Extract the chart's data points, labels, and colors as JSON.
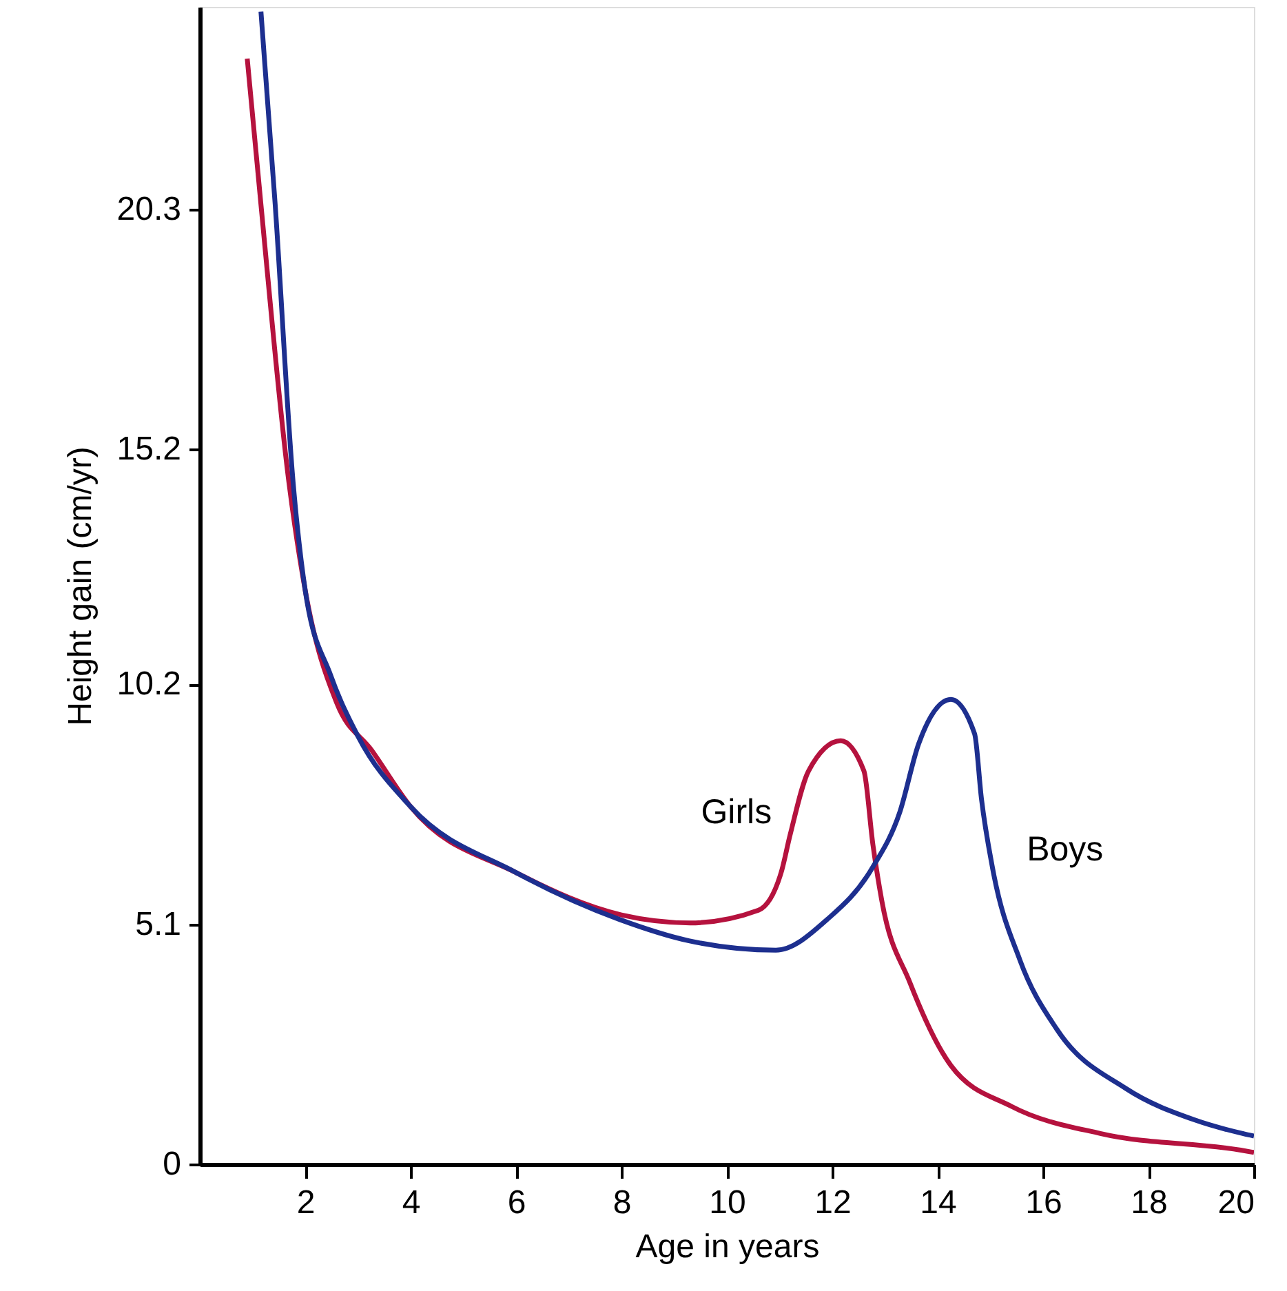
{
  "chart_data": {
    "type": "line",
    "xlabel": "Age in years",
    "ylabel": "Height gain (cm/yr)",
    "xlim": [
      0,
      20
    ],
    "xticks": [
      2,
      4,
      6,
      8,
      10,
      12,
      14,
      16,
      18,
      20
    ],
    "ylim": [
      0,
      24.6
    ],
    "yticks": [
      0,
      5.1,
      10.2,
      15.2,
      20.3
    ],
    "grid": false,
    "marker": "none",
    "line_style": "solid",
    "series": [
      {
        "name": "Girls",
        "color": "#b5123e",
        "x": [
          0.9,
          1.16,
          1.69,
          2,
          2.6,
          3.26,
          4,
          6,
          8,
          9.3,
          10.6,
          11.03,
          11.2,
          11.55,
          12.16,
          12.6,
          12.77,
          12.94,
          13.47,
          14.25,
          15.4,
          17.1,
          19.75,
          20
        ],
        "values": [
          23.5,
          20.4,
          14.5,
          12.2,
          9.8,
          8.8,
          7.6,
          6.2,
          5.3,
          5.13,
          5.4,
          6.2,
          7.0,
          8.36,
          9.0,
          8.36,
          6.8,
          5.6,
          3.87,
          2.1,
          1.23,
          0.65,
          0.3,
          0.25
        ]
      },
      {
        "name": "Boys",
        "color": "#1d2f8f",
        "x": [
          1.16,
          1.43,
          1.77,
          2,
          2.48,
          3.0,
          4,
          6,
          7.97,
          9.28,
          10.93,
          11.9,
          12.76,
          13.28,
          13.64,
          14.25,
          14.7,
          14.83,
          15.04,
          15.56,
          16.26,
          17.57,
          18.88,
          19.8,
          20
        ],
        "values": [
          24.5,
          20.4,
          14.5,
          12.2,
          10.4,
          9.1,
          7.6,
          6.2,
          5.2,
          4.75,
          4.55,
          5.2,
          6.3,
          7.48,
          8.94,
          9.88,
          9.15,
          7.77,
          6.3,
          4.34,
          2.87,
          1.61,
          0.94,
          0.65,
          0.6
        ]
      }
    ]
  }
}
